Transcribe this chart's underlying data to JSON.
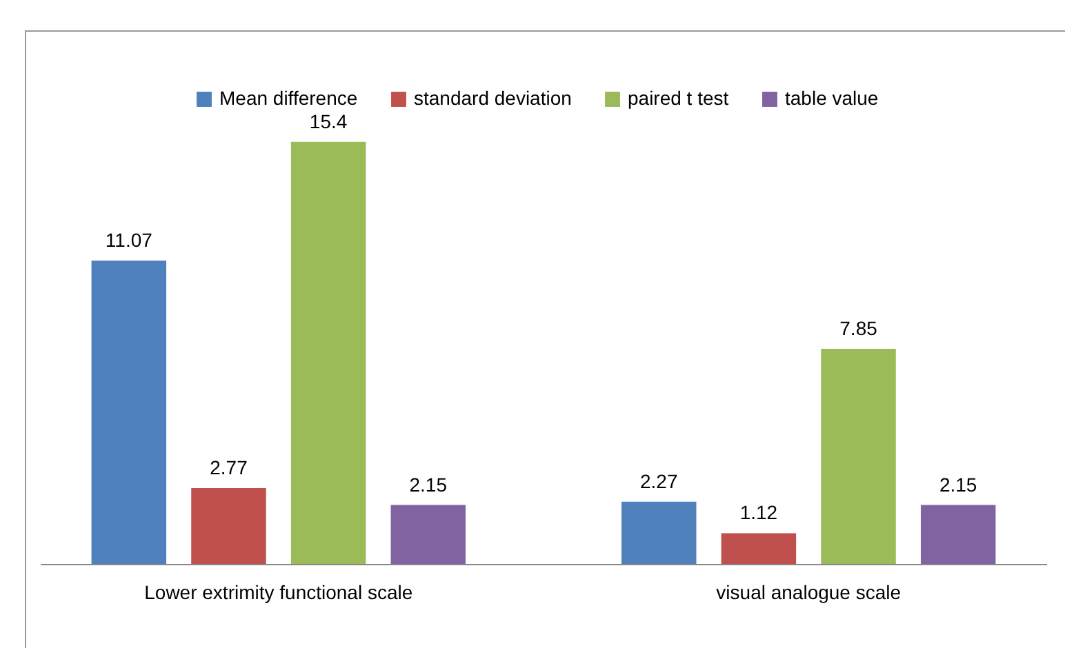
{
  "chart_data": {
    "type": "bar",
    "categories": [
      "Lower extrimity functional scale",
      "visual analogue scale"
    ],
    "series": [
      {
        "name": "Mean difference",
        "color": "#4f81bd",
        "values": [
          11.07,
          2.27
        ]
      },
      {
        "name": "standard deviation",
        "color": "#c0504d",
        "values": [
          2.77,
          1.12
        ]
      },
      {
        "name": "paired t test",
        "color": "#9bbb59",
        "values": [
          15.4,
          7.85
        ]
      },
      {
        "name": "table value",
        "color": "#8064a2",
        "values": [
          2.15,
          2.15
        ]
      }
    ],
    "data_labels": true,
    "legend": "top"
  }
}
